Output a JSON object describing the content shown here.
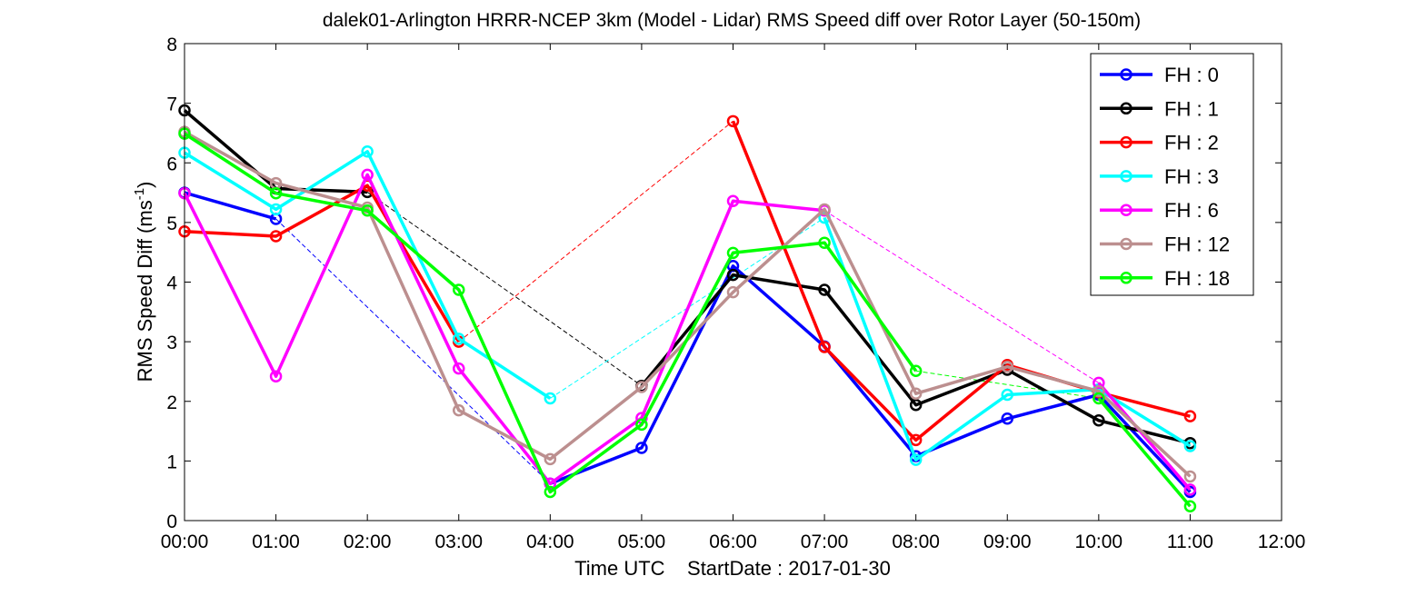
{
  "chart_data": {
    "type": "line",
    "title": "dalek01-Arlington HRRR-NCEP 3km (Model - Lidar) RMS Speed diff over Rotor Layer (50-150m)",
    "xlabel": "Time UTC    StartDate : 2017-01-30",
    "ylabel_main": "RMS Speed Diff (ms",
    "ylabel_sup": "-1",
    "ylabel_end": ")",
    "xlim": [
      0,
      12
    ],
    "ylim": [
      0,
      8
    ],
    "x_ticks": [
      {
        "value": 0,
        "label": "00:00"
      },
      {
        "value": 1,
        "label": "01:00"
      },
      {
        "value": 2,
        "label": "02:00"
      },
      {
        "value": 3,
        "label": "03:00"
      },
      {
        "value": 4,
        "label": "04:00"
      },
      {
        "value": 5,
        "label": "05:00"
      },
      {
        "value": 6,
        "label": "06:00"
      },
      {
        "value": 7,
        "label": "07:00"
      },
      {
        "value": 8,
        "label": "08:00"
      },
      {
        "value": 9,
        "label": "09:00"
      },
      {
        "value": 10,
        "label": "10:00"
      },
      {
        "value": 11,
        "label": "11:00"
      },
      {
        "value": 12,
        "label": "12:00"
      }
    ],
    "y_ticks": [
      {
        "value": 0,
        "label": "0"
      },
      {
        "value": 1,
        "label": "1"
      },
      {
        "value": 2,
        "label": "2"
      },
      {
        "value": 3,
        "label": "3"
      },
      {
        "value": 4,
        "label": "4"
      },
      {
        "value": 5,
        "label": "5"
      },
      {
        "value": 6,
        "label": "6"
      },
      {
        "value": 7,
        "label": "7"
      },
      {
        "value": 8,
        "label": "8"
      }
    ],
    "legend_position": "top-right",
    "grid": false,
    "series": [
      {
        "name": "FH : 0",
        "color": "#0000ff",
        "x": [
          0,
          1,
          4,
          5,
          6,
          7,
          8,
          9,
          10,
          11
        ],
        "y": [
          5.5,
          5.06,
          0.62,
          1.22,
          4.27,
          2.92,
          1.08,
          1.71,
          2.11,
          0.48
        ]
      },
      {
        "name": "FH : 1",
        "color": "#000000",
        "x": [
          0,
          1,
          2,
          5,
          6,
          7,
          8,
          9,
          10,
          11
        ],
        "y": [
          6.88,
          5.57,
          5.51,
          2.26,
          4.12,
          3.87,
          1.94,
          2.53,
          1.68,
          1.3
        ]
      },
      {
        "name": "FH : 2",
        "color": "#ff0000",
        "x": [
          0,
          1,
          2,
          3,
          6,
          7,
          8,
          9,
          10,
          11
        ],
        "y": [
          4.85,
          4.77,
          5.62,
          3.0,
          6.7,
          2.91,
          1.35,
          2.61,
          2.15,
          1.75
        ]
      },
      {
        "name": "FH : 3",
        "color": "#00ffff",
        "x": [
          0,
          1,
          2,
          3,
          4,
          7,
          8,
          9,
          10,
          11
        ],
        "y": [
          6.17,
          5.22,
          6.19,
          3.05,
          2.05,
          5.08,
          1.02,
          2.11,
          2.2,
          1.25
        ]
      },
      {
        "name": "FH : 6",
        "color": "#ff00ff",
        "x": [
          0,
          1,
          2,
          3,
          4,
          5,
          6,
          7,
          10,
          11
        ],
        "y": [
          5.49,
          2.42,
          5.8,
          2.55,
          0.62,
          1.72,
          5.36,
          5.2,
          2.31,
          0.52
        ]
      },
      {
        "name": "FH : 12",
        "color": "#bc8f8f",
        "x": [
          0,
          1,
          2,
          3,
          4,
          5,
          6,
          7,
          8,
          9,
          10,
          11
        ],
        "y": [
          6.52,
          5.66,
          5.25,
          1.85,
          1.03,
          2.24,
          3.83,
          5.22,
          2.13,
          2.58,
          2.17,
          0.74
        ]
      },
      {
        "name": "FH : 18",
        "color": "#00ff00",
        "x": [
          0,
          1,
          2,
          3,
          4,
          5,
          6,
          7,
          8,
          10,
          11
        ],
        "y": [
          6.49,
          5.49,
          5.2,
          3.87,
          0.48,
          1.61,
          4.49,
          4.66,
          2.51,
          2.05,
          0.24
        ]
      }
    ]
  }
}
